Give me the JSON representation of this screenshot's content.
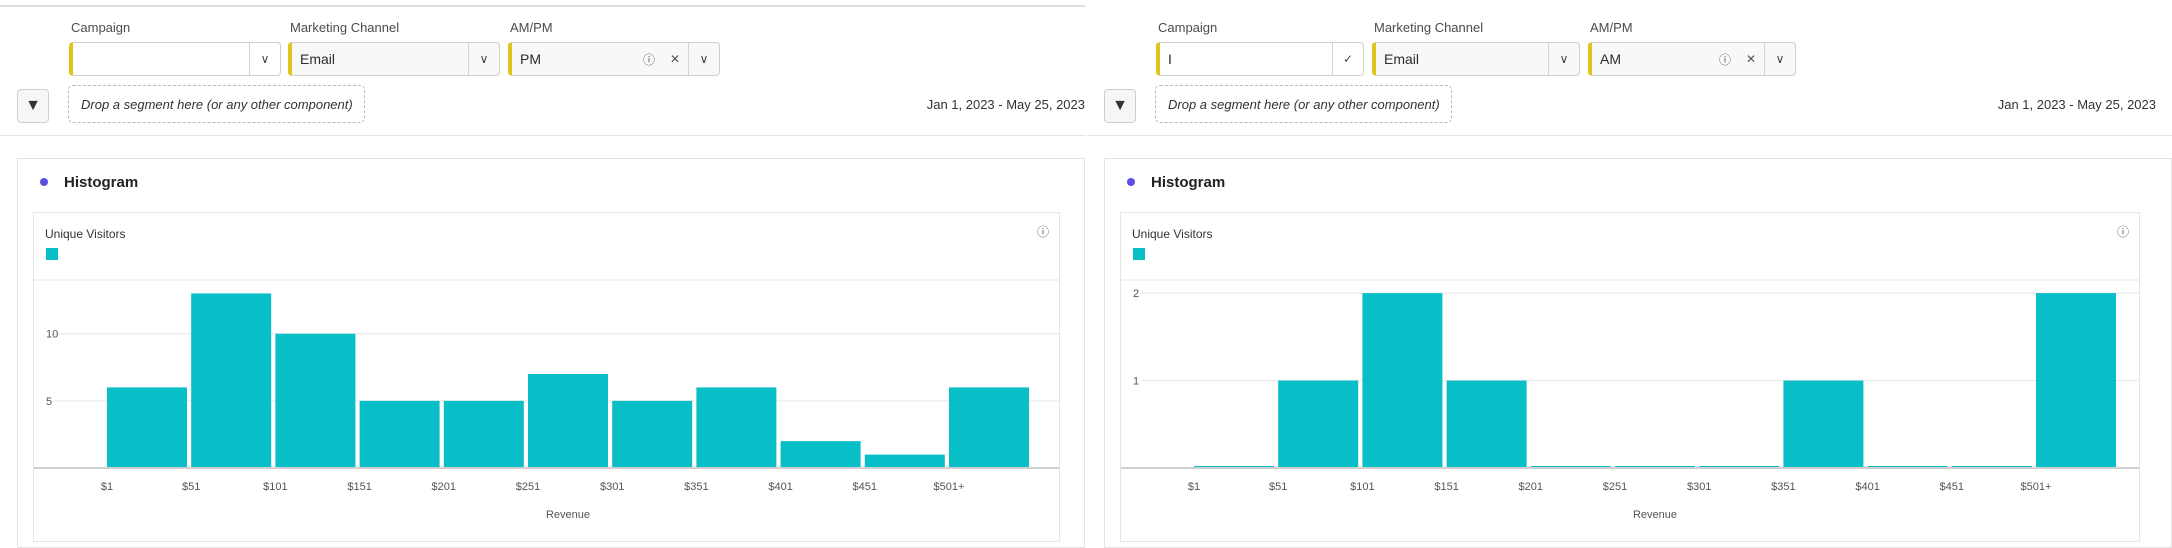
{
  "panels": [
    {
      "filters": {
        "campaign": {
          "label": "Campaign",
          "value": ""
        },
        "channel": {
          "label": "Marketing Channel",
          "value": "Email"
        },
        "ampm": {
          "label": "AM/PM",
          "value": "PM"
        }
      },
      "drop_zone": "Drop a segment here (or any other component)",
      "date_range": "Jan 1, 2023 - May 25, 2023",
      "title": "Histogram",
      "metric": "Unique Visitors"
    },
    {
      "filters": {
        "campaign": {
          "label": "Campaign",
          "value": "I"
        },
        "channel": {
          "label": "Marketing Channel",
          "value": "Email"
        },
        "ampm": {
          "label": "AM/PM",
          "value": "AM"
        }
      },
      "drop_zone": "Drop a segment here (or any other component)",
      "date_range": "Jan 1, 2023 - May 25, 2023",
      "title": "Histogram",
      "metric": "Unique Visitors"
    }
  ],
  "chart_data": [
    {
      "type": "bar",
      "title": "Unique Visitors",
      "xlabel": "Revenue",
      "ylabel": "",
      "categories": [
        "$1",
        "$51",
        "$101",
        "$151",
        "$201",
        "$251",
        "$301",
        "$351",
        "$401",
        "$451",
        "$501+"
      ],
      "values": [
        6,
        13,
        10,
        5,
        5,
        7,
        5,
        6,
        2,
        1,
        6
      ],
      "yticks": [
        5,
        10
      ],
      "ylim": [
        0,
        14
      ],
      "color": "#09bfc7"
    },
    {
      "type": "bar",
      "title": "Unique Visitors",
      "xlabel": "Revenue",
      "ylabel": "",
      "categories": [
        "$1",
        "$51",
        "$101",
        "$151",
        "$201",
        "$251",
        "$301",
        "$351",
        "$401",
        "$451",
        "$501+"
      ],
      "values": [
        0,
        1,
        2,
        1,
        0,
        0,
        0,
        1,
        0,
        0,
        2
      ],
      "yticks": [
        1,
        2
      ],
      "ylim": [
        0,
        2.15
      ],
      "color": "#09bfc7"
    }
  ]
}
